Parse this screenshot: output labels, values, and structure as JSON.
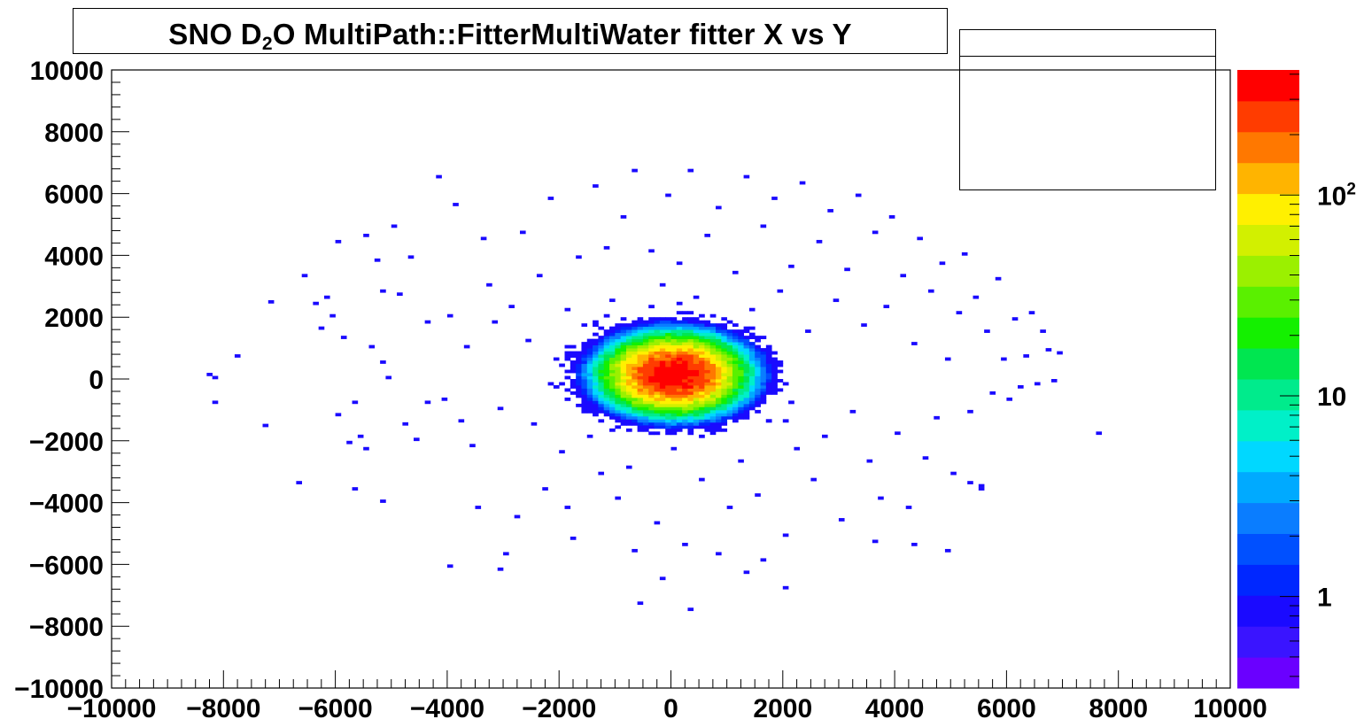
{
  "chart_data": {
    "type": "heatmap",
    "title": {
      "pre": "SNO D",
      "sub": "2",
      "post": "O MultiPath::FitterMultiWater  fitter X vs Y"
    },
    "xlim": [
      -10000,
      10000
    ],
    "ylim": [
      -10000,
      10000
    ],
    "x_ticks": [
      "−10000",
      "−8000",
      "−6000",
      "−4000",
      "−2000",
      "0",
      "2000",
      "4000",
      "6000",
      "8000",
      "10000"
    ],
    "y_ticks": [
      "10000",
      "8000",
      "6000",
      "4000",
      "2000",
      "0",
      "−2000",
      "−4000",
      "−6000",
      "−8000",
      "−10000"
    ],
    "bin_size": 100,
    "color_scale": "log",
    "z_range": [
      0.35,
      420
    ],
    "colorbar_ticks": [
      "1",
      "10",
      "10^2"
    ],
    "palette": [
      "#6a00ff",
      "#3a14ff",
      "#1a0aff",
      "#0027ff",
      "#0050ff",
      "#0a7dff",
      "#00aaff",
      "#00d8ff",
      "#00f0c8",
      "#00eb8c",
      "#00e650",
      "#14f000",
      "#5af000",
      "#9bf000",
      "#d2f000",
      "#fff000",
      "#ffb400",
      "#ff7800",
      "#ff3c00",
      "#ff0000"
    ],
    "core": {
      "center_x": 0,
      "center_y": 100,
      "sigma": 500,
      "peak_count": 420
    },
    "sparse_points": [
      [
        -8200,
        0
      ],
      [
        -8200,
        -800
      ],
      [
        -7800,
        700
      ],
      [
        -7300,
        -1550
      ],
      [
        -7200,
        2450
      ],
      [
        -6600,
        3300
      ],
      [
        -6400,
        2400
      ],
      [
        -6200,
        2600
      ],
      [
        -6300,
        1600
      ],
      [
        -6100,
        2000
      ],
      [
        -6000,
        4400
      ],
      [
        -6000,
        -1200
      ],
      [
        -5900,
        1300
      ],
      [
        -5800,
        -2100
      ],
      [
        -5700,
        -800
      ],
      [
        -5600,
        -1900
      ],
      [
        -5500,
        4600
      ],
      [
        -5500,
        -2300
      ],
      [
        -5400,
        1000
      ],
      [
        -5300,
        3800
      ],
      [
        -5200,
        500
      ],
      [
        -5200,
        2800
      ],
      [
        -5100,
        0
      ],
      [
        -5000,
        4900
      ],
      [
        -4900,
        2700
      ],
      [
        -4800,
        -1500
      ],
      [
        -4700,
        3900
      ],
      [
        -4600,
        -2000
      ],
      [
        -4400,
        1800
      ],
      [
        -4400,
        -800
      ],
      [
        -4200,
        6500
      ],
      [
        -4100,
        -700
      ],
      [
        -4000,
        2000
      ],
      [
        -3900,
        5600
      ],
      [
        -3800,
        -1400
      ],
      [
        -3700,
        1000
      ],
      [
        -3600,
        -2200
      ],
      [
        -3500,
        -4200
      ],
      [
        -3400,
        4500
      ],
      [
        -3300,
        3000
      ],
      [
        -3200,
        1800
      ],
      [
        -3100,
        -1000
      ],
      [
        -3000,
        -5700
      ],
      [
        -2900,
        2300
      ],
      [
        -2800,
        -4500
      ],
      [
        -2700,
        4700
      ],
      [
        -2600,
        1200
      ],
      [
        -2500,
        -1500
      ],
      [
        -2400,
        3300
      ],
      [
        -2300,
        -3600
      ],
      [
        -2200,
        5800
      ],
      [
        -2100,
        600
      ],
      [
        -2000,
        -2400
      ],
      [
        -1900,
        2200
      ],
      [
        -1800,
        -5200
      ],
      [
        -1700,
        3900
      ],
      [
        -1600,
        1700
      ],
      [
        -1500,
        -1900
      ],
      [
        -1400,
        6200
      ],
      [
        -1300,
        -3100
      ],
      [
        -1200,
        4200
      ],
      [
        -1100,
        2500
      ],
      [
        -1000,
        -3900
      ],
      [
        -900,
        5200
      ],
      [
        -800,
        -2900
      ],
      [
        -700,
        6700
      ],
      [
        -600,
        1900
      ],
      [
        -500,
        -1600
      ],
      [
        -400,
        4100
      ],
      [
        -300,
        -4700
      ],
      [
        -200,
        3000
      ],
      [
        -100,
        5900
      ],
      [
        0,
        -2300
      ],
      [
        100,
        3700
      ],
      [
        200,
        -5400
      ],
      [
        300,
        6700
      ],
      [
        400,
        2600
      ],
      [
        500,
        -3300
      ],
      [
        600,
        4600
      ],
      [
        700,
        -1800
      ],
      [
        800,
        5500
      ],
      [
        900,
        1900
      ],
      [
        1000,
        -4200
      ],
      [
        1100,
        3400
      ],
      [
        1200,
        -2700
      ],
      [
        1300,
        6500
      ],
      [
        1400,
        2200
      ],
      [
        1500,
        -3800
      ],
      [
        1600,
        4900
      ],
      [
        1700,
        -1400
      ],
      [
        1800,
        5800
      ],
      [
        1900,
        2800
      ],
      [
        2000,
        -5100
      ],
      [
        2100,
        3600
      ],
      [
        2200,
        -2300
      ],
      [
        2300,
        6300
      ],
      [
        2400,
        1500
      ],
      [
        2500,
        -3300
      ],
      [
        2600,
        4400
      ],
      [
        2700,
        -1900
      ],
      [
        2800,
        5400
      ],
      [
        2900,
        2500
      ],
      [
        3000,
        -4600
      ],
      [
        3100,
        3500
      ],
      [
        3200,
        -1100
      ],
      [
        3300,
        5900
      ],
      [
        3400,
        1700
      ],
      [
        3500,
        -2700
      ],
      [
        3600,
        4700
      ],
      [
        3700,
        -3900
      ],
      [
        3800,
        2300
      ],
      [
        3900,
        5200
      ],
      [
        4000,
        -1800
      ],
      [
        4100,
        3300
      ],
      [
        4200,
        -4200
      ],
      [
        4300,
        1100
      ],
      [
        4400,
        4500
      ],
      [
        4500,
        -2600
      ],
      [
        4600,
        2800
      ],
      [
        4700,
        -1300
      ],
      [
        4800,
        3700
      ],
      [
        4900,
        600
      ],
      [
        5000,
        -3100
      ],
      [
        5100,
        2100
      ],
      [
        5200,
        4000
      ],
      [
        5300,
        -1100
      ],
      [
        5400,
        2600
      ],
      [
        5500,
        -3600
      ],
      [
        5600,
        1500
      ],
      [
        5700,
        -500
      ],
      [
        5800,
        3200
      ],
      [
        5900,
        600
      ],
      [
        6000,
        -700
      ],
      [
        6100,
        1900
      ],
      [
        6200,
        -300
      ],
      [
        6300,
        700
      ],
      [
        6400,
        2100
      ],
      [
        6500,
        -200
      ],
      [
        6600,
        1500
      ],
      [
        6700,
        900
      ],
      [
        6800,
        -100
      ],
      [
        6900,
        800
      ],
      [
        7600,
        -1800
      ],
      [
        -8300,
        100
      ],
      [
        -4000,
        -6100
      ],
      [
        -3100,
        -6200
      ],
      [
        -600,
        -7300
      ],
      [
        300,
        -7500
      ],
      [
        800,
        -5700
      ],
      [
        1600,
        -5900
      ],
      [
        1300,
        -6300
      ],
      [
        -700,
        -5600
      ],
      [
        -200,
        -6500
      ],
      [
        2000,
        -6800
      ],
      [
        4300,
        -5400
      ],
      [
        4900,
        -5600
      ],
      [
        3600,
        -5300
      ],
      [
        -1900,
        -4200
      ],
      [
        -5700,
        -3600
      ],
      [
        -6700,
        -3400
      ],
      [
        -5200,
        -4000
      ],
      [
        5300,
        -3400
      ],
      [
        5500,
        -3500
      ]
    ]
  }
}
